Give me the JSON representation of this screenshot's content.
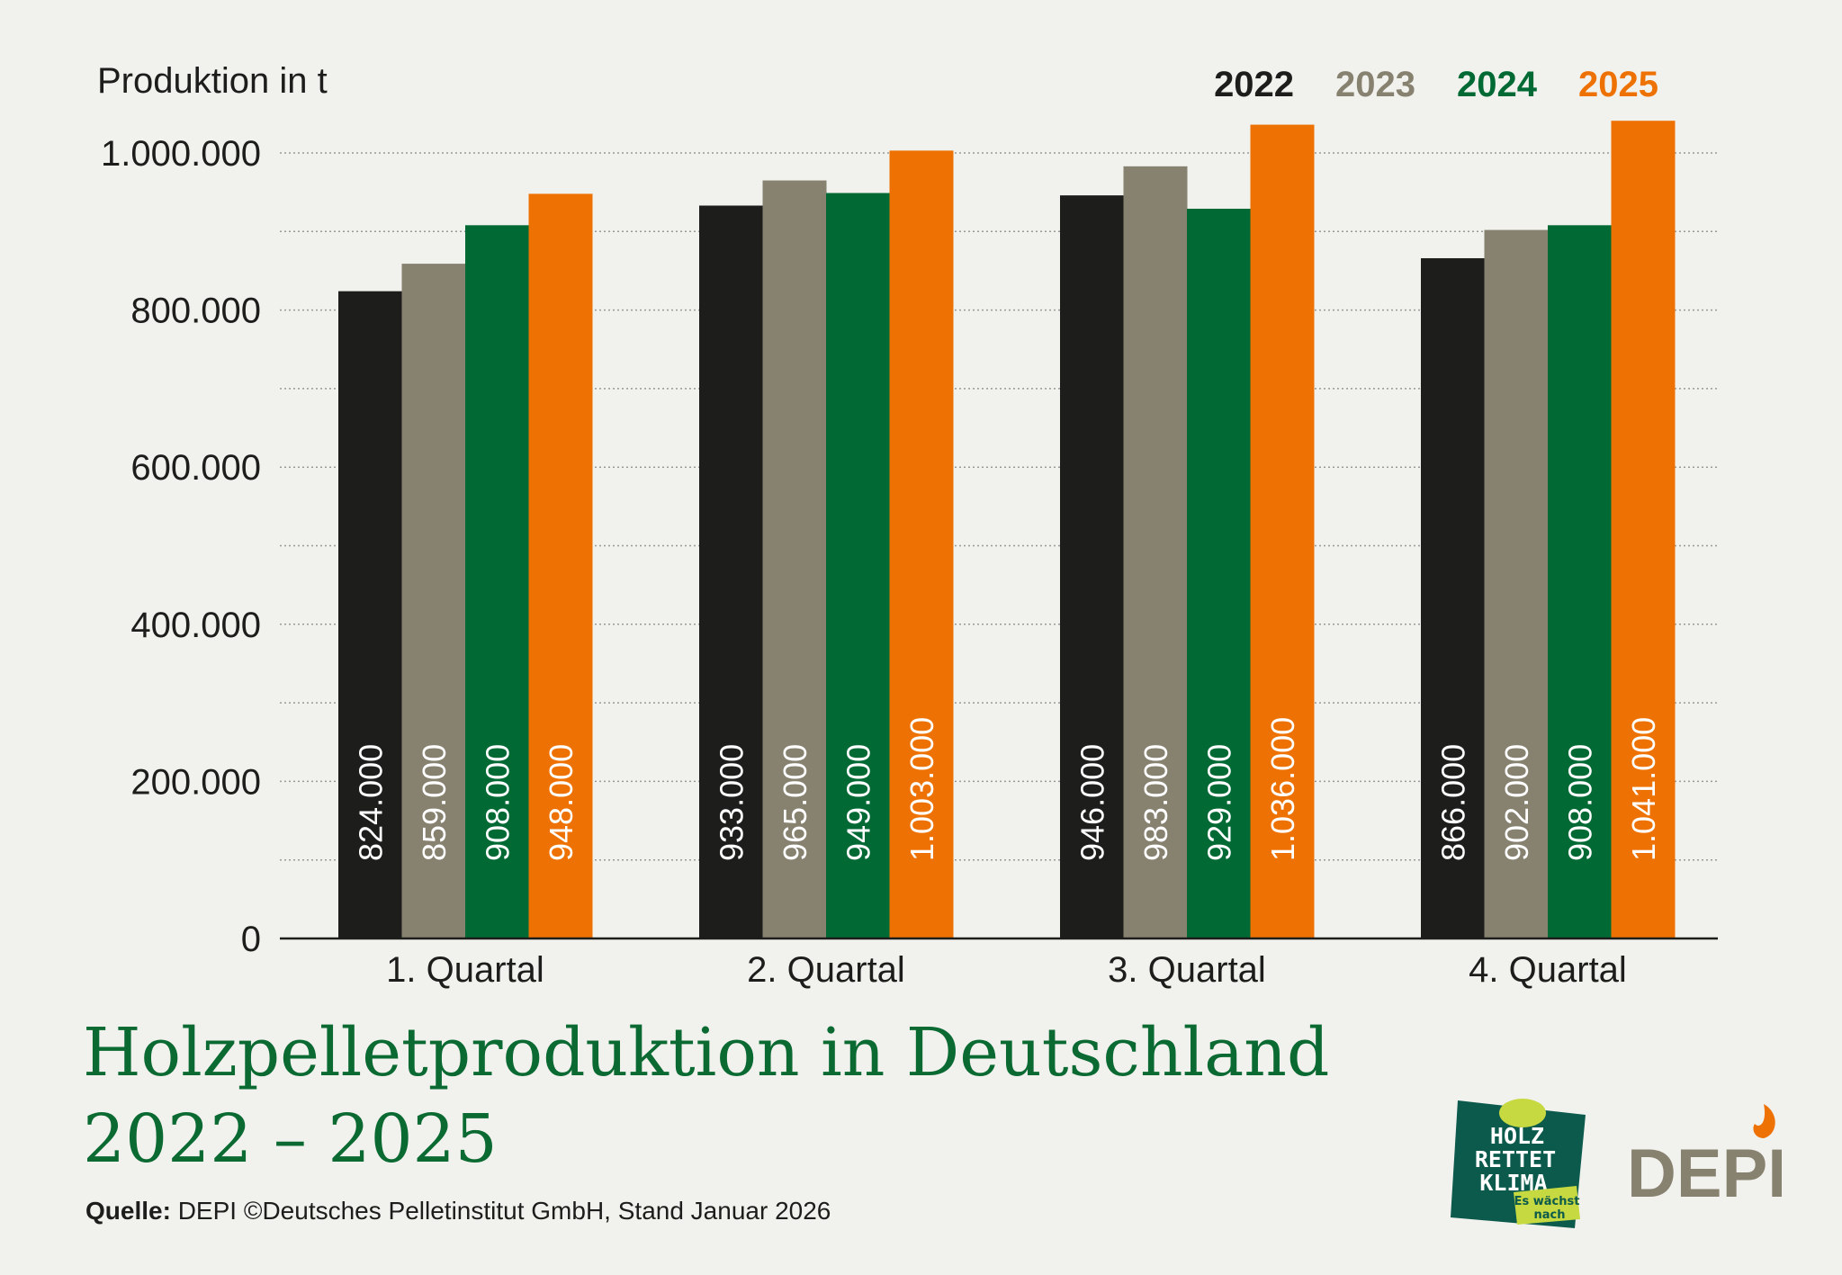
{
  "chart_data": {
    "type": "bar",
    "title": "Holzpelletproduktion in Deutschland",
    "title_line2": "2022 – 2025",
    "ylabel": "Produktion in t",
    "xlabel": "",
    "ylim": [
      0,
      1000000
    ],
    "yticks": [
      0,
      200000,
      400000,
      600000,
      800000,
      1000000
    ],
    "ytick_labels": [
      "0",
      "200.000",
      "400.000",
      "600.000",
      "800.000",
      "1.000.000"
    ],
    "grid": "horizontal dotted",
    "legend_position": "top-right",
    "categories": [
      "1. Quartal",
      "2. Quartal",
      "3. Quartal",
      "4. Quartal"
    ],
    "series": [
      {
        "name": "2022",
        "color": "#1d1d1b",
        "values": [
          824000,
          933000,
          946000,
          866000
        ],
        "labels": [
          "824.000",
          "933.000",
          "946.000",
          "866.000"
        ]
      },
      {
        "name": "2023",
        "color": "#878170",
        "values": [
          859000,
          965000,
          983000,
          902000
        ],
        "labels": [
          "859.000",
          "965.000",
          "983.000",
          "902.000"
        ]
      },
      {
        "name": "2024",
        "color": "#006934",
        "values": [
          908000,
          949000,
          929000,
          908000
        ],
        "labels": [
          "908.000",
          "949.000",
          "929.000",
          "908.000"
        ]
      },
      {
        "name": "2025",
        "color": "#ee7203",
        "values": [
          948000,
          1003000,
          1036000,
          1041000
        ],
        "labels": [
          "948.000",
          "1.003.000",
          "1.036.000",
          "1.041.000"
        ]
      }
    ]
  },
  "source": {
    "label": "Quelle:",
    "text": "DEPI ©Deutsches Pelletinstitut GmbH, Stand Januar 2026"
  },
  "logos": {
    "hrk": {
      "lines": [
        "HOLZ",
        "RETTET",
        "KLIMA"
      ],
      "tag": [
        "Es wächst",
        "nach"
      ],
      "colors": {
        "bg": "#0b5a4c",
        "accent": "#c7d940"
      }
    },
    "depi": {
      "text": "DEPI",
      "colors": {
        "text": "#878170",
        "flame": "#ee7203"
      }
    }
  }
}
